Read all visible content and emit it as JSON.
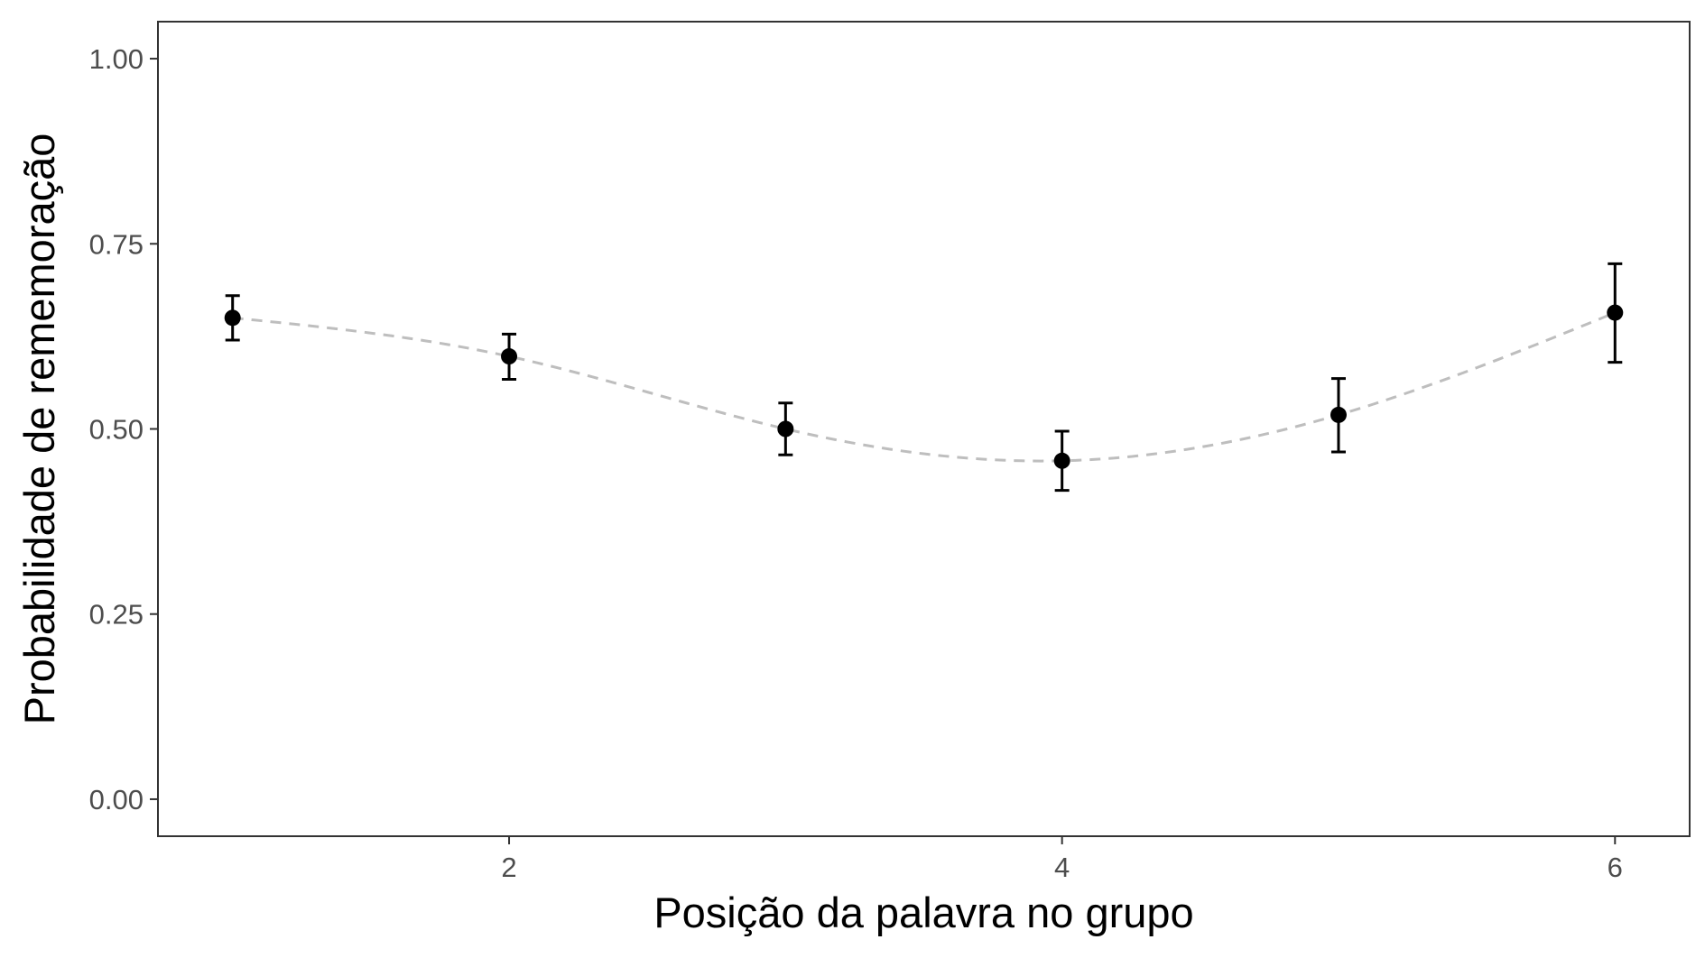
{
  "chart_data": {
    "type": "scatter",
    "title": "",
    "xlabel": "Posição da palavra no grupo",
    "ylabel": "Probabilidade de rememoração",
    "xlim": [
      0.73,
      6.27
    ],
    "ylim": [
      -0.05,
      1.05
    ],
    "x_ticks": [
      2,
      4,
      6
    ],
    "x_tick_labels": [
      "2",
      "4",
      "6"
    ],
    "y_ticks": [
      0,
      0.25,
      0.5,
      0.75,
      1
    ],
    "y_tick_labels": [
      "0.00",
      "0.25",
      "0.50",
      "0.75",
      "1.00"
    ],
    "grid": false,
    "legend": "none",
    "points": [
      {
        "x": 1,
        "y": 0.65,
        "ymin": 0.62,
        "ymax": 0.68
      },
      {
        "x": 2,
        "y": 0.598,
        "ymin": 0.567,
        "ymax": 0.628
      },
      {
        "x": 3,
        "y": 0.5,
        "ymin": 0.465,
        "ymax": 0.535
      },
      {
        "x": 4,
        "y": 0.457,
        "ymin": 0.417,
        "ymax": 0.497
      },
      {
        "x": 5,
        "y": 0.519,
        "ymin": 0.469,
        "ymax": 0.568
      },
      {
        "x": 6,
        "y": 0.657,
        "ymin": 0.59,
        "ymax": 0.723
      }
    ],
    "trend_line": {
      "style": "dashed",
      "color": "#bebebe"
    },
    "colors": {
      "points": "#000000",
      "error_bars": "#000000",
      "panel_border": "#333333",
      "tick_text": "#4d4d4d"
    }
  }
}
